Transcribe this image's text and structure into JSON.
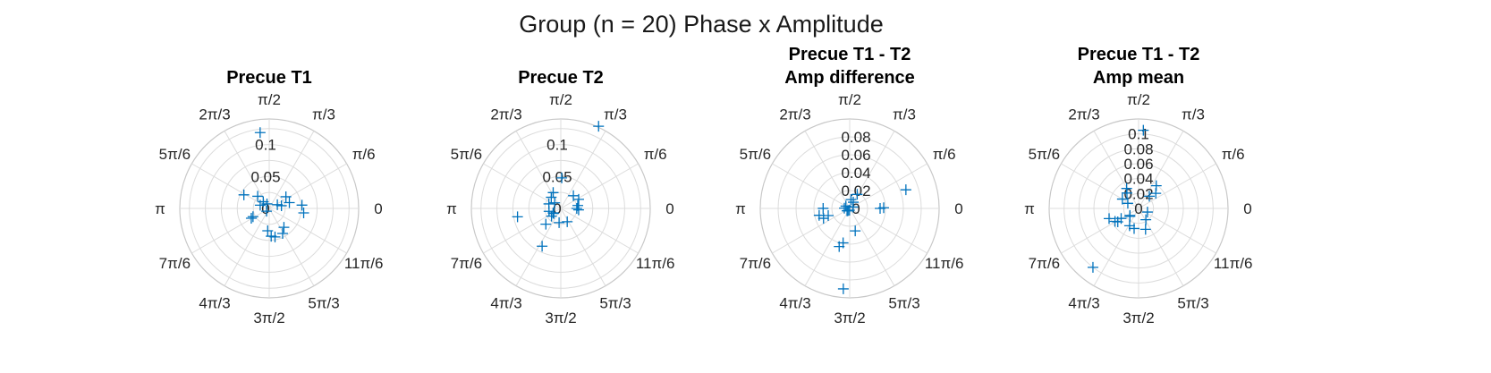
{
  "figure_title": "Group (n = 20) Phase x Amplitude",
  "angle_tick_labels": [
    "0",
    "π/6",
    "π/3",
    "π/2",
    "2π/3",
    "5π/6",
    "π",
    "7π/6",
    "4π/3",
    "3π/2",
    "5π/3",
    "11π/6"
  ],
  "marker_color": "#0072BD",
  "chart_data": [
    {
      "type": "scatter",
      "coordinate_system": "polar",
      "marker": "+",
      "title": [
        "Precue T1"
      ],
      "theta_ticks": [
        "0",
        "π/6",
        "π/3",
        "π/2",
        "2π/3",
        "5π/6",
        "π",
        "7π/6",
        "4π/3",
        "3π/2",
        "5π/3",
        "11π/6"
      ],
      "r_ticks": [
        "0",
        "0.05",
        "0.1"
      ],
      "rlim": [
        0,
        0.14
      ],
      "points": [
        {
          "theta": 1.69,
          "r": 0.1195
        },
        {
          "theta": 0.61,
          "r": 0.0319
        },
        {
          "theta": 0.28,
          "r": 0.0328
        },
        {
          "theta": 0.1,
          "r": 0.0515
        },
        {
          "theta": -0.13,
          "r": 0.0544
        },
        {
          "theta": 0.22,
          "r": 0.0196
        },
        {
          "theta": 0.43,
          "r": 0.014
        },
        {
          "theta": -0.91,
          "r": 0.0375
        },
        {
          "theta": -1.08,
          "r": 0.0445
        },
        {
          "theta": -1.37,
          "r": 0.0455
        },
        {
          "theta": -1.5,
          "r": 0.0436
        },
        {
          "theta": -1.64,
          "r": 0.0351
        },
        {
          "theta": 2.33,
          "r": 0.0262
        },
        {
          "theta": 2.65,
          "r": 0.045
        },
        {
          "theta": 2.3,
          "r": 0.014
        },
        {
          "theta": 2.8,
          "r": 0.015
        },
        {
          "theta": -2.67,
          "r": 0.0285
        },
        {
          "theta": -2.64,
          "r": 0.032
        },
        {
          "theta": -2.33,
          "r": 0.006
        },
        {
          "theta": 2.03,
          "r": 0.0079
        }
      ]
    },
    {
      "type": "scatter",
      "coordinate_system": "polar",
      "marker": "+",
      "title": [
        "Precue T2"
      ],
      "theta_ticks": [
        "0",
        "π/6",
        "π/3",
        "π/2",
        "2π/3",
        "5π/6",
        "π",
        "7π/6",
        "4π/3",
        "3π/2",
        "5π/3",
        "11π/6"
      ],
      "r_ticks": [
        "0",
        "0.05",
        "0.1"
      ],
      "rlim": [
        0,
        0.14
      ],
      "points": [
        {
          "theta": 1.14,
          "r": 0.1416
        },
        {
          "theta": 1.54,
          "r": 0.0478
        },
        {
          "theta": 0.79,
          "r": 0.028
        },
        {
          "theta": 0.47,
          "r": 0.0314
        },
        {
          "theta": 0.17,
          "r": 0.027
        },
        {
          "theta": 0.0,
          "r": 0.025
        },
        {
          "theta": -0.08,
          "r": 0.028
        },
        {
          "theta": 2.02,
          "r": 0.0275
        },
        {
          "theta": 2.28,
          "r": 0.0229
        },
        {
          "theta": 2.4,
          "r": 0.013
        },
        {
          "theta": -2.95,
          "r": 0.069
        },
        {
          "theta": -2.33,
          "r": 0.034
        },
        {
          "theta": -1.69,
          "r": 0.0224
        },
        {
          "theta": -1.12,
          "r": 0.0231
        },
        {
          "theta": -2.03,
          "r": 0.066
        },
        {
          "theta": -2.61,
          "r": 0.014
        },
        {
          "theta": -2.45,
          "r": 0.0189
        },
        {
          "theta": 2.78,
          "r": 0.02
        },
        {
          "theta": -2.9,
          "r": 0.019
        },
        {
          "theta": -2.52,
          "r": 0.0135
        }
      ]
    },
    {
      "type": "scatter",
      "coordinate_system": "polar",
      "marker": "+",
      "title": [
        "Precue T1 - T2",
        "Amp difference"
      ],
      "theta_ticks": [
        "0",
        "π/6",
        "π/3",
        "π/2",
        "2π/3",
        "5π/6",
        "π",
        "7π/6",
        "4π/3",
        "3π/2",
        "5π/3",
        "11π/6"
      ],
      "r_ticks": [
        "0",
        "0.02",
        "0.04",
        "0.06",
        "0.08"
      ],
      "rlim": [
        0,
        0.1
      ],
      "points": [
        {
          "theta": 0.32,
          "r": 0.0662
        },
        {
          "theta": 0.02,
          "r": 0.038
        },
        {
          "theta": 0.0,
          "r": 0.034
        },
        {
          "theta": 1.08,
          "r": 0.0178
        },
        {
          "theta": 1.42,
          "r": 0.01
        },
        {
          "theta": 1.05,
          "r": 0.008
        },
        {
          "theta": 0.4,
          "r": 0.004
        },
        {
          "theta": -1.33,
          "r": 0.0259
        },
        {
          "theta": -1.65,
          "r": 0.0902
        },
        {
          "theta": -1.76,
          "r": 0.0392
        },
        {
          "theta": -1.84,
          "r": 0.0442
        },
        {
          "theta": -2.78,
          "r": 0.0313
        },
        {
          "theta": -2.82,
          "r": 0.0253
        },
        {
          "theta": 3.14,
          "r": 0.0297
        },
        {
          "theta": -2.92,
          "r": 0.035
        },
        {
          "theta": 2.6,
          "r": 0.005
        },
        {
          "theta": 3.1,
          "r": 0.006
        },
        {
          "theta": -2.4,
          "r": 0.004
        },
        {
          "theta": -2.2,
          "r": 0.003
        },
        {
          "theta": -1.68,
          "r": 0.002
        }
      ]
    },
    {
      "type": "scatter",
      "coordinate_system": "polar",
      "marker": "+",
      "title": [
        "Precue T1 - T2",
        "Amp mean"
      ],
      "theta_ticks": [
        "0",
        "π/6",
        "π/3",
        "π/2",
        "2π/3",
        "5π/6",
        "π",
        "7π/6",
        "4π/3",
        "3π/2",
        "5π/3",
        "11π/6"
      ],
      "r_ticks": [
        "0",
        "0.02",
        "0.04",
        "0.06",
        "0.08",
        "0.1"
      ],
      "rlim": [
        0,
        0.12
      ],
      "points": [
        {
          "theta": 1.51,
          "r": 0.105
        },
        {
          "theta": 0.91,
          "r": 0.0386
        },
        {
          "theta": 0.72,
          "r": 0.0307
        },
        {
          "theta": 0.85,
          "r": 0.0218
        },
        {
          "theta": -0.39,
          "r": 0.0129
        },
        {
          "theta": 2.11,
          "r": 0.0312
        },
        {
          "theta": 2.22,
          "r": 0.0259
        },
        {
          "theta": 2.62,
          "r": 0.0251
        },
        {
          "theta": -2.81,
          "r": 0.0419
        },
        {
          "theta": -2.62,
          "r": 0.027
        },
        {
          "theta": -2.64,
          "r": 0.0361
        },
        {
          "theta": -2.4,
          "r": 0.0158
        },
        {
          "theta": -2.57,
          "r": 0.0332
        },
        {
          "theta": -2.46,
          "r": 0.015
        },
        {
          "theta": -2.05,
          "r": 0.0262
        },
        {
          "theta": -1.79,
          "r": 0.0276
        },
        {
          "theta": -1.25,
          "r": 0.0296
        },
        {
          "theta": -1.0,
          "r": 0.018
        },
        {
          "theta": -2.23,
          "r": 0.1
        },
        {
          "theta": 2.7,
          "r": 0.016
        }
      ]
    }
  ]
}
